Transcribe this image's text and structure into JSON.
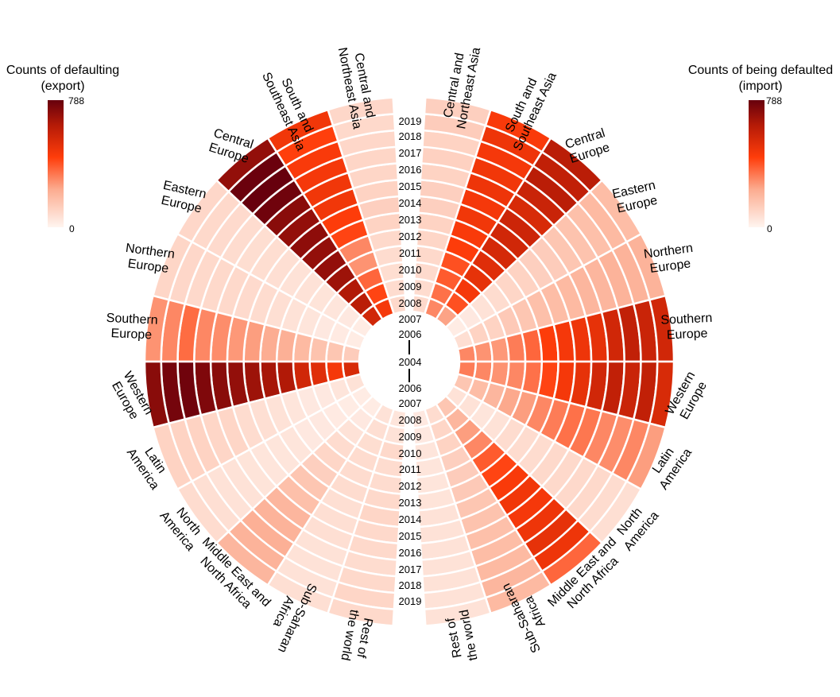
{
  "chart_data": {
    "type": "heatmap",
    "subtype": "polar-heatmap",
    "scale": {
      "min": 0,
      "max": 788,
      "palette": "Reds",
      "colors": [
        "#fff5f0",
        "#fcbba1",
        "#fc9272",
        "#ff3d0a",
        "#cb181d",
        "#67000d"
      ]
    },
    "years": [
      "2007",
      "2008",
      "2009",
      "2010",
      "2011",
      "2012",
      "2013",
      "2014",
      "2015",
      "2016",
      "2017",
      "2018",
      "2019"
    ],
    "year_axis_labels": [
      "2019",
      "2018",
      "2017",
      "2016",
      "2015",
      "2014",
      "2013",
      "2012",
      "2011",
      "2010",
      "2009",
      "2008",
      "2007",
      "2006",
      "2004",
      "2006",
      "2007",
      "2008",
      "2009",
      "2010",
      "2011",
      "2012",
      "2013",
      "2014",
      "2015",
      "2016",
      "2017",
      "2018",
      "2019"
    ],
    "regions": [
      "Central and Northeast Asia",
      "South and Southeast Asia",
      "Central Europe",
      "Eastern Europe",
      "Northern Europe",
      "Southern Europe",
      "Western Europe",
      "Latin America",
      "North America",
      "Middle East and North Africa",
      "Sub-Saharan Africa",
      "Rest of the world"
    ],
    "region_labels": [
      [
        "Central and",
        "Northeast Asia"
      ],
      [
        "South and",
        "Southeast Asia"
      ],
      [
        "Central",
        "Europe"
      ],
      [
        "Eastern",
        "Europe"
      ],
      [
        "Northern",
        "Europe"
      ],
      [
        "Southern",
        "Europe"
      ],
      [
        "Western",
        "Europe"
      ],
      [
        "Latin",
        "America"
      ],
      [
        "North",
        "America"
      ],
      [
        "Middle East and",
        "North Africa"
      ],
      [
        "Sub-Saharan",
        "Africa"
      ],
      [
        "Rest of",
        "the world"
      ]
    ],
    "series": [
      {
        "name": "Counts of defaulting (export)",
        "side": "left",
        "values": {
          "Central and Northeast Asia": [
            90,
            80,
            75,
            80,
            90,
            110,
            120,
            110,
            100,
            100,
            95,
            90,
            95
          ],
          "South and Southeast Asia": [
            460,
            420,
            360,
            280,
            300,
            420,
            440,
            470,
            470,
            460,
            450,
            430,
            470
          ],
          "Central Europe": [
            560,
            620,
            640,
            680,
            700,
            700,
            710,
            700,
            720,
            770,
            788,
            780,
            700
          ],
          "Eastern Europe": [
            30,
            40,
            50,
            55,
            60,
            60,
            70,
            75,
            75,
            80,
            85,
            90,
            95
          ],
          "Northern Europe": [
            30,
            35,
            40,
            50,
            60,
            70,
            80,
            85,
            90,
            90,
            90,
            95,
            100
          ],
          "Southern Europe": [
            130,
            150,
            160,
            190,
            220,
            230,
            260,
            270,
            290,
            300,
            350,
            300,
            280
          ],
          "Western Europe": [
            540,
            460,
            520,
            560,
            640,
            660,
            680,
            700,
            720,
            740,
            770,
            760,
            720
          ],
          "Latin America": [
            60,
            50,
            40,
            40,
            50,
            60,
            70,
            80,
            100,
            100,
            110,
            110,
            110
          ],
          "North America": [
            30,
            30,
            35,
            40,
            40,
            50,
            50,
            50,
            55,
            60,
            60,
            70,
            80
          ],
          "Middle East and North Africa": [
            30,
            40,
            60,
            80,
            100,
            120,
            150,
            170,
            200,
            210,
            220,
            210,
            200
          ],
          "Sub-Saharan Africa": [
            60,
            70,
            75,
            80,
            80,
            80,
            70,
            70,
            70,
            60,
            60,
            60,
            70
          ],
          "Rest of the world": [
            50,
            60,
            90,
            80,
            80,
            90,
            100,
            90,
            90,
            80,
            90,
            100,
            90
          ]
        }
      },
      {
        "name": "Counts of being defaulted (import)",
        "side": "right",
        "values": {
          "Central and Northeast Asia": [
            90,
            80,
            85,
            90,
            100,
            110,
            120,
            120,
            110,
            115,
            110,
            130,
            120
          ],
          "South and Southeast Asia": [
            300,
            340,
            380,
            400,
            440,
            450,
            470,
            460,
            480,
            470,
            460,
            480,
            450
          ],
          "Central Europe": [
            250,
            400,
            460,
            500,
            520,
            550,
            560,
            570,
            540,
            580,
            620,
            600,
            620
          ],
          "Eastern Europe": [
            30,
            40,
            60,
            80,
            100,
            110,
            120,
            130,
            150,
            160,
            170,
            190,
            180
          ],
          "Northern Europe": [
            70,
            110,
            110,
            140,
            150,
            170,
            180,
            190,
            200,
            200,
            210,
            210,
            210
          ],
          "Southern Europe": [
            300,
            280,
            270,
            320,
            360,
            440,
            460,
            480,
            500,
            560,
            600,
            580,
            560
          ],
          "Western Europe": [
            320,
            300,
            280,
            300,
            340,
            420,
            460,
            500,
            560,
            600,
            580,
            600,
            540
          ],
          "Latin America": [
            150,
            180,
            200,
            240,
            260,
            300,
            320,
            340,
            330,
            300,
            290,
            300,
            260
          ],
          "North America": [
            60,
            60,
            50,
            60,
            80,
            80,
            80,
            90,
            90,
            90,
            90,
            80,
            70
          ],
          "Middle East and North Africa": [
            150,
            200,
            260,
            300,
            380,
            420,
            450,
            470,
            460,
            480,
            500,
            480,
            360
          ],
          "Sub-Saharan Africa": [
            80,
            100,
            110,
            120,
            130,
            140,
            150,
            160,
            170,
            180,
            190,
            200,
            190
          ],
          "Rest of the world": [
            40,
            40,
            50,
            50,
            50,
            55,
            60,
            60,
            60,
            60,
            60,
            60,
            60
          ]
        }
      }
    ],
    "legends": [
      {
        "title_lines": [
          "Counts of defaulting",
          "(export)"
        ],
        "max_label": "788",
        "min_label": "0",
        "placement": "top-left"
      },
      {
        "title_lines": [
          "Counts of being defaulted",
          "(import)"
        ],
        "max_label": "788",
        "min_label": "0",
        "placement": "top-right"
      }
    ]
  }
}
